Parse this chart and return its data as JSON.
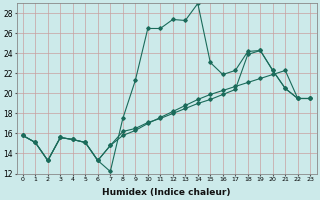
{
  "xlabel": "Humidex (Indice chaleur)",
  "ylabel": "",
  "background_color": "#cceaea",
  "line_color": "#1a6b5a",
  "xlim": [
    -0.5,
    23.5
  ],
  "ylim": [
    12,
    29
  ],
  "yticks": [
    12,
    14,
    16,
    18,
    20,
    22,
    24,
    26,
    28
  ],
  "xticks": [
    0,
    1,
    2,
    3,
    4,
    5,
    6,
    7,
    8,
    9,
    10,
    11,
    12,
    13,
    14,
    15,
    16,
    17,
    18,
    19,
    20,
    21,
    22,
    23
  ],
  "series": [
    {
      "x": [
        0,
        1,
        2,
        3,
        4,
        5,
        6,
        7,
        8,
        9,
        10,
        11,
        12,
        13,
        14,
        15,
        16,
        17,
        18,
        19,
        20,
        21,
        22,
        23
      ],
      "y": [
        15.8,
        15.1,
        13.3,
        15.6,
        15.4,
        15.1,
        13.3,
        12.2,
        17.5,
        21.3,
        26.5,
        26.5,
        27.4,
        27.3,
        29.0,
        23.1,
        21.9,
        22.3,
        24.2,
        24.3,
        22.3,
        20.5,
        19.5,
        19.5
      ]
    },
    {
      "x": [
        0,
        1,
        2,
        3,
        4,
        5,
        6,
        7,
        8,
        9,
        10,
        11,
        12,
        13,
        14,
        15,
        16,
        17,
        18,
        19,
        20,
        21,
        22,
        23
      ],
      "y": [
        15.8,
        15.1,
        13.3,
        15.6,
        15.4,
        15.1,
        13.3,
        14.8,
        15.8,
        16.3,
        17.0,
        17.6,
        18.2,
        18.8,
        19.4,
        19.9,
        20.3,
        20.7,
        21.1,
        21.5,
        21.9,
        22.3,
        19.5,
        19.5
      ]
    },
    {
      "x": [
        0,
        1,
        2,
        3,
        4,
        5,
        6,
        7,
        8,
        9,
        10,
        11,
        12,
        13,
        14,
        15,
        16,
        17,
        18,
        19,
        20,
        21,
        22,
        23
      ],
      "y": [
        15.8,
        15.1,
        13.3,
        15.6,
        15.4,
        15.1,
        13.3,
        14.8,
        16.2,
        16.5,
        17.1,
        17.5,
        18.0,
        18.5,
        19.0,
        19.4,
        19.9,
        20.4,
        23.9,
        24.3,
        22.3,
        20.5,
        19.5,
        19.5
      ]
    }
  ]
}
